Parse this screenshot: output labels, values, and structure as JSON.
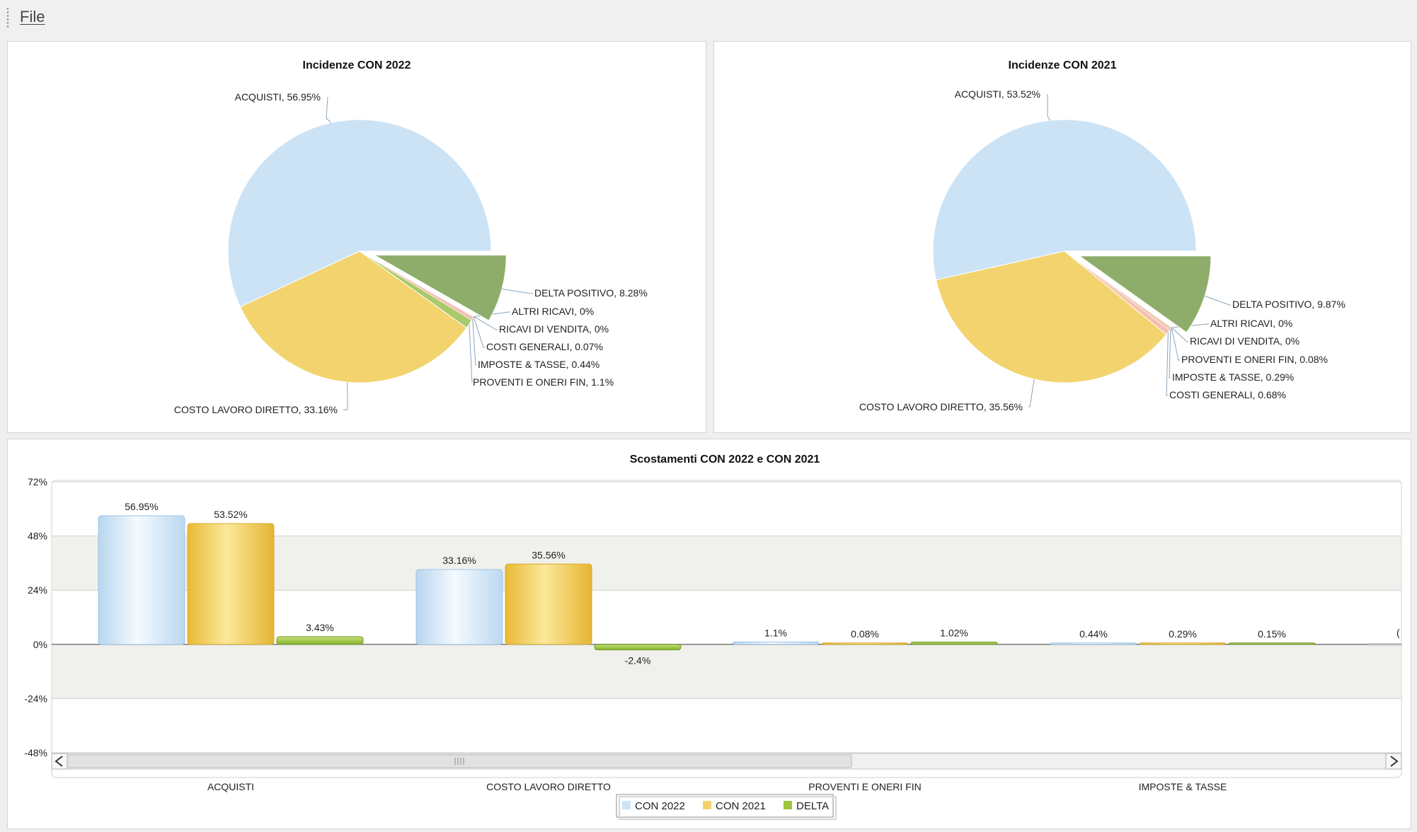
{
  "menu": {
    "file_label": "File"
  },
  "colors": {
    "con2022": "#cce3f6",
    "con2021": "#f2d36e",
    "delta_pos": "#8fad6a",
    "delta_bar": "#9cc43f",
    "thin_slice_a": "#f4c0b0",
    "thin_slice_b": "#a9c96a"
  },
  "chart_data": [
    {
      "type": "pie",
      "title": "Incidenze CON 2022",
      "slices": [
        {
          "label": "ACQUISTI, 56.95%",
          "name": "ACQUISTI",
          "value": 56.95
        },
        {
          "label": "COSTO LAVORO DIRETTO, 33.16%",
          "name": "COSTO LAVORO DIRETTO",
          "value": 33.16
        },
        {
          "label": "PROVENTI E ONERI FIN, 1.1%",
          "name": "PROVENTI E ONERI FIN",
          "value": 1.1
        },
        {
          "label": "IMPOSTE & TASSE, 0.44%",
          "name": "IMPOSTE & TASSE",
          "value": 0.44
        },
        {
          "label": "COSTI GENERALI, 0.07%",
          "name": "COSTI GENERALI",
          "value": 0.07
        },
        {
          "label": "RICAVI DI VENDITA, 0%",
          "name": "RICAVI DI VENDITA",
          "value": 0
        },
        {
          "label": "ALTRI RICAVI, 0%",
          "name": "ALTRI RICAVI",
          "value": 0
        },
        {
          "label": "DELTA POSITIVO, 8.28%",
          "name": "DELTA POSITIVO",
          "value": 8.28
        }
      ]
    },
    {
      "type": "pie",
      "title": "Incidenze CON 2021",
      "slices": [
        {
          "label": "ACQUISTI, 53.52%",
          "name": "ACQUISTI",
          "value": 53.52
        },
        {
          "label": "COSTO LAVORO DIRETTO, 35.56%",
          "name": "COSTO LAVORO DIRETTO",
          "value": 35.56
        },
        {
          "label": "COSTI GENERALI, 0.68%",
          "name": "COSTI GENERALI",
          "value": 0.68
        },
        {
          "label": "IMPOSTE & TASSE, 0.29%",
          "name": "IMPOSTE & TASSE",
          "value": 0.29
        },
        {
          "label": "PROVENTI E ONERI FIN, 0.08%",
          "name": "PROVENTI E ONERI FIN",
          "value": 0.08
        },
        {
          "label": "RICAVI DI VENDITA, 0%",
          "name": "RICAVI DI VENDITA",
          "value": 0
        },
        {
          "label": "ALTRI RICAVI, 0%",
          "name": "ALTRI RICAVI",
          "value": 0
        },
        {
          "label": "DELTA POSITIVO, 9.87%",
          "name": "DELTA POSITIVO",
          "value": 9.87
        }
      ]
    },
    {
      "type": "bar",
      "title": "Scostamenti CON 2022 e CON 2021",
      "categories": [
        "ACQUISTI",
        "COSTO LAVORO DIRETTO",
        "PROVENTI E ONERI FIN",
        "IMPOSTE & TASSE"
      ],
      "series": [
        {
          "name": "CON 2022",
          "values": [
            56.95,
            33.16,
            1.1,
            0.44
          ],
          "labels": [
            "56.95%",
            "33.16%",
            "1.1%",
            "0.44%"
          ]
        },
        {
          "name": "CON 2021",
          "values": [
            53.52,
            35.56,
            0.08,
            0.29
          ],
          "labels": [
            "53.52%",
            "35.56%",
            "0.08%",
            "0.29%"
          ]
        },
        {
          "name": "DELTA",
          "values": [
            3.43,
            -2.4,
            1.02,
            0.15
          ],
          "labels": [
            "3.43%",
            "-2.4%",
            "1.02%",
            "0.15%"
          ]
        }
      ],
      "yticks": [
        "72%",
        "48%",
        "24%",
        "0%",
        "-24%",
        "-48%"
      ],
      "ylim": [
        -48,
        72
      ],
      "grid": true,
      "legend": "bottom",
      "partial_label": "("
    }
  ]
}
